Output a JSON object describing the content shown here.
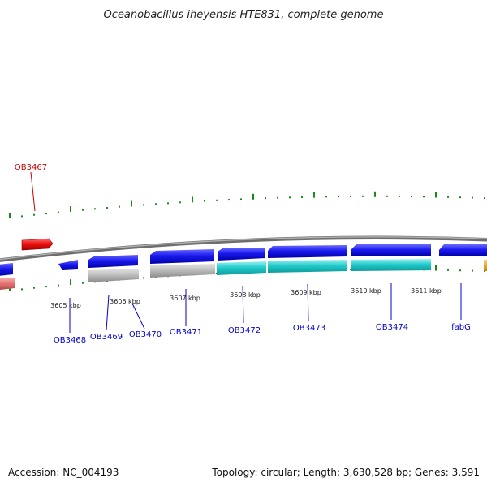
{
  "title": "Oceanobacillus iheyensis HTE831, complete genome",
  "footer": {
    "accession": "Accession: NC_004193",
    "summary": "Topology: circular; Length: 3,630,528 bp; Genes: 3,591"
  },
  "scale_labels": [
    "3605 kbp",
    "3606 kbp",
    "3607 kbp",
    "3608 kbp",
    "3609 kbp",
    "3610 kbp",
    "3611 kbp"
  ],
  "genes": [
    {
      "name": "OB3467",
      "color": "#cc0000"
    },
    {
      "name": "OB3468",
      "color": "#0000cc"
    },
    {
      "name": "OB3469",
      "color": "#0000cc"
    },
    {
      "name": "OB3470",
      "color": "#0000cc"
    },
    {
      "name": "OB3471",
      "color": "#0000cc"
    },
    {
      "name": "OB3472",
      "color": "#0000cc"
    },
    {
      "name": "OB3473",
      "color": "#0000cc"
    },
    {
      "name": "OB3474",
      "color": "#0000cc"
    },
    {
      "name": "fabG",
      "color": "#0000cc"
    }
  ],
  "colors": {
    "backbone": "#8c8c8c",
    "forward_cds": "#1010e0",
    "reverse_cds": "#e01010",
    "rna_feature": "#20c8c8",
    "gray_feature": "#b8b8b8",
    "pink_feature": "#e87070",
    "orange_feature": "#f0a020",
    "ticks": "#1a8a1a"
  }
}
